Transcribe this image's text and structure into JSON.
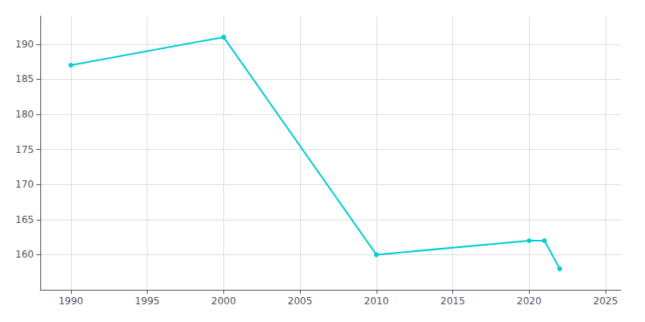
{
  "chart_data": {
    "type": "line",
    "x": [
      1990,
      2000,
      2010,
      2020,
      2021,
      2022
    ],
    "values": [
      187,
      191,
      160,
      162,
      162,
      158
    ],
    "color": "#00CED1",
    "marker": "circle",
    "xlim": [
      1988,
      2026
    ],
    "xticks": [
      1990,
      1995,
      2000,
      2005,
      2010,
      2015,
      2020,
      2025
    ],
    "ylim": [
      155,
      194
    ],
    "yticks": [
      160,
      165,
      170,
      175,
      180,
      185,
      190
    ],
    "grid": true
  }
}
